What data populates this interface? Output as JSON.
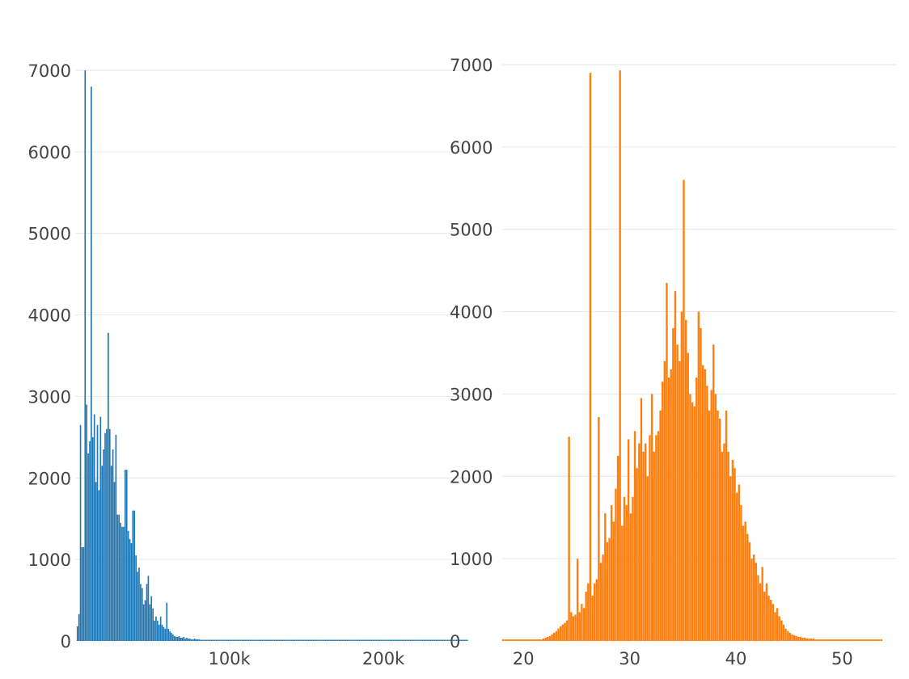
{
  "chart_data": [
    {
      "type": "bar",
      "color": "#1f77b4",
      "xlim": [
        0,
        255000
      ],
      "ylim": [
        0,
        7000
      ],
      "grid": true,
      "x_ticks": [
        {
          "value": 100000,
          "label": "100k"
        },
        {
          "value": 200000,
          "label": "200k"
        }
      ],
      "y_ticks": [
        {
          "value": 0,
          "label": "0"
        },
        {
          "value": 1000,
          "label": "1000"
        },
        {
          "value": 2000,
          "label": "2000"
        },
        {
          "value": 3000,
          "label": "3000"
        },
        {
          "value": 4000,
          "label": "4000"
        },
        {
          "value": 5000,
          "label": "5000"
        },
        {
          "value": 6000,
          "label": "6000"
        },
        {
          "value": 7000,
          "label": "7000"
        }
      ],
      "bin_start": 1000,
      "bin_width": 1000,
      "counts": [
        180,
        330,
        2650,
        1150,
        1150,
        7000,
        2900,
        2300,
        2450,
        6800,
        2500,
        2780,
        1950,
        2650,
        1850,
        2750,
        2150,
        2350,
        2550,
        2600,
        3780,
        2600,
        2150,
        2350,
        1950,
        2530,
        1550,
        1550,
        1450,
        1400,
        1400,
        2100,
        2100,
        1350,
        1250,
        1200,
        1600,
        1600,
        1050,
        850,
        900,
        700,
        650,
        450,
        500,
        700,
        800,
        450,
        550,
        400,
        250,
        300,
        250,
        200,
        300,
        200,
        170,
        150,
        470,
        150,
        120,
        100,
        80,
        60,
        50,
        50,
        60,
        40,
        40,
        50,
        30,
        40,
        30,
        30,
        20,
        20,
        30,
        20,
        20,
        20,
        15,
        15,
        15,
        15,
        15,
        15,
        15,
        15,
        15,
        15,
        15,
        15,
        15,
        15,
        15,
        15,
        15,
        15,
        15,
        15,
        15,
        15,
        15,
        15,
        15,
        15,
        15,
        15,
        15,
        15,
        15,
        15,
        15,
        15,
        15,
        15,
        15,
        15,
        15,
        15,
        15,
        15,
        15,
        15,
        15,
        15,
        15,
        15,
        15,
        15,
        15,
        15,
        15,
        15,
        15,
        15,
        15,
        15,
        15,
        15,
        15,
        15,
        15,
        15,
        15,
        15,
        15,
        15,
        15,
        15,
        15,
        15,
        15,
        15,
        15,
        15,
        15,
        15,
        15,
        15,
        15,
        15,
        15,
        15,
        15,
        15,
        15,
        15,
        15,
        15,
        15,
        15,
        15,
        15,
        15,
        15,
        15,
        15,
        15,
        15,
        15,
        15,
        15,
        15,
        15,
        15,
        15,
        15,
        15,
        15,
        15,
        15,
        15,
        15,
        15,
        15,
        15,
        15,
        15,
        15,
        15,
        15,
        15,
        15,
        15,
        15,
        15,
        15,
        15,
        15,
        15,
        15,
        15,
        15,
        15,
        15,
        15,
        15,
        15,
        15,
        15,
        15,
        15,
        15,
        15,
        15,
        15,
        15,
        15,
        15,
        15,
        15,
        15,
        15,
        15,
        15,
        15,
        15,
        15,
        15,
        15,
        15,
        15,
        15,
        15,
        15,
        15,
        15,
        15,
        15,
        15,
        15,
        15,
        15,
        15,
        15,
        15,
        15,
        15,
        15,
        15,
        15,
        15,
        15,
        15,
        15,
        15,
        15,
        15,
        15,
        15,
        15,
        15,
        15,
        15,
        15,
        15,
        15,
        15
      ]
    },
    {
      "type": "bar",
      "color": "#ff7f0e",
      "xlim": [
        18,
        55
      ],
      "ylim": [
        0,
        7000
      ],
      "grid": true,
      "x_ticks": [
        {
          "value": 20,
          "label": "20"
        },
        {
          "value": 30,
          "label": "30"
        },
        {
          "value": 40,
          "label": "40"
        },
        {
          "value": 50,
          "label": "50"
        }
      ],
      "y_ticks": [
        {
          "value": 0,
          "label": "0"
        },
        {
          "value": 1000,
          "label": "1000"
        },
        {
          "value": 2000,
          "label": "2000"
        },
        {
          "value": 3000,
          "label": "3000"
        },
        {
          "value": 4000,
          "label": "4000"
        },
        {
          "value": 5000,
          "label": "5000"
        },
        {
          "value": 6000,
          "label": "6000"
        },
        {
          "value": 7000,
          "label": "7000"
        }
      ],
      "bin_start": 18,
      "bin_width": 0.2,
      "counts": [
        20,
        20,
        20,
        20,
        20,
        20,
        20,
        20,
        20,
        20,
        20,
        20,
        20,
        20,
        20,
        20,
        20,
        20,
        20,
        30,
        40,
        50,
        60,
        80,
        100,
        120,
        150,
        180,
        200,
        220,
        250,
        2480,
        350,
        300,
        320,
        1000,
        350,
        450,
        400,
        600,
        700,
        6900,
        550,
        700,
        750,
        2720,
        950,
        1050,
        1550,
        1200,
        1250,
        1650,
        1450,
        1850,
        2250,
        6930,
        1400,
        1750,
        1650,
        2450,
        1550,
        1750,
        2550,
        2100,
        2400,
        2950,
        2300,
        2400,
        2000,
        2500,
        3000,
        2300,
        2500,
        2550,
        2800,
        3150,
        3400,
        4350,
        3200,
        3300,
        3800,
        4250,
        3600,
        3400,
        4000,
        5600,
        3900,
        3500,
        3000,
        2900,
        2850,
        3200,
        4000,
        3800,
        3350,
        3300,
        3100,
        2800,
        3050,
        3600,
        3000,
        2800,
        2700,
        2300,
        2400,
        2800,
        2300,
        2000,
        2200,
        2100,
        1800,
        1900,
        1650,
        1400,
        1450,
        1300,
        1200,
        1000,
        1050,
        950,
        800,
        700,
        900,
        600,
        700,
        550,
        500,
        450,
        350,
        400,
        300,
        250,
        200,
        150,
        120,
        100,
        80,
        70,
        60,
        50,
        50,
        40,
        40,
        30,
        30,
        30,
        30,
        20,
        20,
        20,
        20,
        20,
        20,
        20,
        20,
        20,
        20,
        20,
        20,
        20,
        20,
        20,
        20,
        20,
        20,
        20,
        20,
        20,
        20,
        20,
        20,
        20,
        20,
        20,
        20,
        20,
        20,
        20,
        20
      ]
    }
  ]
}
